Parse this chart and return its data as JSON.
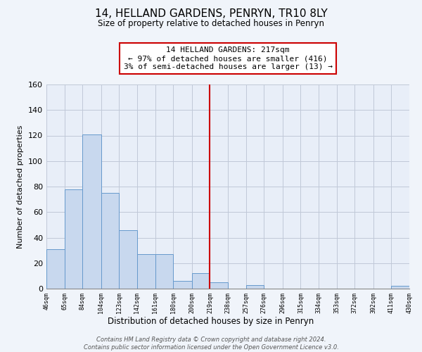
{
  "title": "14, HELLAND GARDENS, PENRYN, TR10 8LY",
  "subtitle": "Size of property relative to detached houses in Penryn",
  "xlabel": "Distribution of detached houses by size in Penryn",
  "ylabel": "Number of detached properties",
  "bin_labels": [
    "46sqm",
    "65sqm",
    "84sqm",
    "104sqm",
    "123sqm",
    "142sqm",
    "161sqm",
    "180sqm",
    "200sqm",
    "219sqm",
    "238sqm",
    "257sqm",
    "276sqm",
    "296sqm",
    "315sqm",
    "334sqm",
    "353sqm",
    "372sqm",
    "392sqm",
    "411sqm",
    "430sqm"
  ],
  "bin_edges": [
    46,
    65,
    84,
    104,
    123,
    142,
    161,
    180,
    200,
    219,
    238,
    257,
    276,
    296,
    315,
    334,
    353,
    372,
    392,
    411,
    430
  ],
  "bar_heights": [
    31,
    78,
    121,
    75,
    46,
    27,
    27,
    6,
    12,
    5,
    0,
    3,
    0,
    0,
    0,
    0,
    0,
    0,
    0,
    2
  ],
  "bar_color": "#c8d8ee",
  "bar_edge_color": "#6699cc",
  "vline_x": 219,
  "vline_color": "#cc0000",
  "annotation_text": "14 HELLAND GARDENS: 217sqm\n← 97% of detached houses are smaller (416)\n3% of semi-detached houses are larger (13) →",
  "annotation_box_edge_color": "#cc0000",
  "ylim": [
    0,
    160
  ],
  "yticks": [
    0,
    20,
    40,
    60,
    80,
    100,
    120,
    140,
    160
  ],
  "footer_text": "Contains HM Land Registry data © Crown copyright and database right 2024.\nContains public sector information licensed under the Open Government Licence v3.0.",
  "bg_color": "#f0f4fa",
  "plot_bg_color": "#e8eef8",
  "grid_color": "#c0c8d8"
}
